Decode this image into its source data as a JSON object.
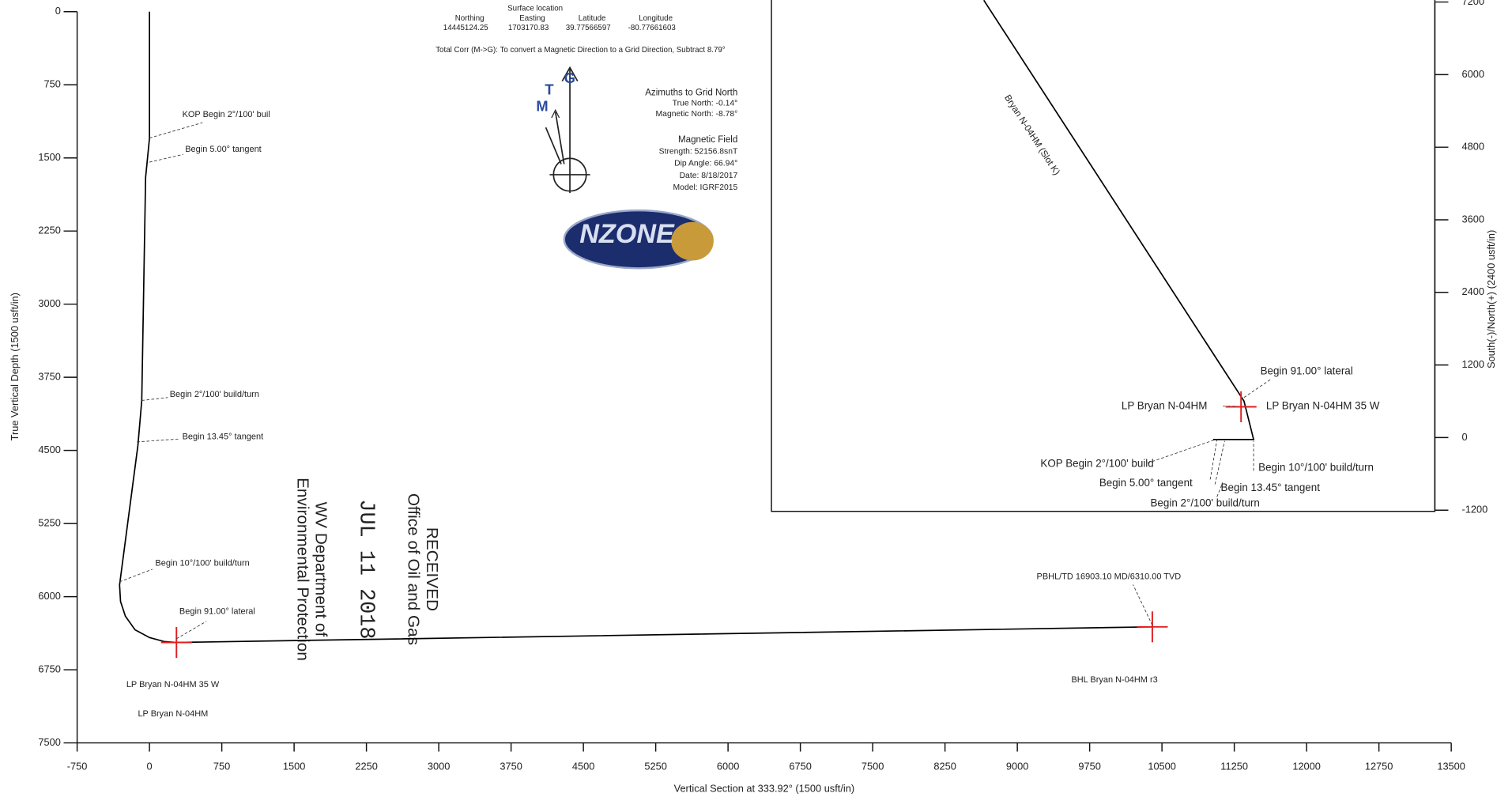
{
  "chart_data": [
    {
      "type": "line",
      "x_label": "Vertical Section at 333.92° (1500 usft/in)",
      "y_label": "True Vertical Depth (1500 usft/in)",
      "xlim": [
        -750,
        13500
      ],
      "ylim": [
        7500,
        0
      ],
      "xticks": [
        -750,
        0,
        750,
        1500,
        2250,
        3000,
        3750,
        4500,
        5250,
        6000,
        6750,
        7500,
        8250,
        9000,
        9750,
        10500,
        11250,
        12000,
        12750,
        13500
      ],
      "yticks": [
        0,
        750,
        1500,
        2250,
        3000,
        3750,
        4500,
        5250,
        6000,
        6750,
        7500
      ],
      "y_axis_side": "left",
      "series": [
        {
          "color": "#000000",
          "x": [
            0,
            0,
            -40,
            -80,
            -120,
            -310,
            -300,
            -250,
            -150,
            0,
            150,
            280,
            10400
          ],
          "values": [
            0,
            1300,
            1700,
            3990,
            4450,
            5880,
            6050,
            6200,
            6340,
            6420,
            6460,
            6470,
            6310
          ]
        }
      ],
      "target_color": "#e02020",
      "targets": [
        {
          "x": 280,
          "y": 6470
        },
        {
          "x": 10400,
          "y": 6310
        }
      ],
      "annotations": [
        "KOP Begin 2°/100' buil",
        "Begin 5.00° tangent",
        "Begin 2°/100' build/turn",
        "Begin 13.45° tangent",
        "Begin 10°/100' build/turn",
        "Begin 91.00° lateral",
        "LP Bryan N-04HM 35 W",
        "LP Bryan N-04HM",
        "PBHL/TD 16903.10 MD/6310.00 TVD",
        "BHL Bryan N-04HM r3"
      ]
    },
    {
      "type": "line",
      "y_label": "South(-)/North(+) (2400 usft/in)",
      "xlim": [
        -7470,
        3464
      ],
      "ylim": [
        -1220,
        7200
      ],
      "yticks": [
        -1200,
        0,
        1200,
        2400,
        3600,
        4800,
        6000,
        7200
      ],
      "y_axis_side": "right",
      "series": [
        {
          "name": "Bryan N-04HM (Slot K)",
          "color": "#000000",
          "x": [
            -3970,
            318,
            477,
            -191
          ],
          "values": [
            7230,
            604,
            -32,
            -32
          ]
        }
      ],
      "target_color": "#e02020",
      "targets": [
        {
          "x": 270,
          "y": 509
        }
      ],
      "annotations": [
        "Begin 91.00° lateral",
        "LP Bryan N-04HM",
        "LP Bryan N-04HM 35 W",
        "KOP Begin 2°/100' build",
        "Begin 5.00° tangent",
        "Begin 13.45° tangent",
        "Begin 10°/100' build/turn",
        "Begin 2°/100' build/turn"
      ]
    }
  ],
  "header": {
    "surface_location": "Surface location",
    "columns": [
      "Northing",
      "Easting",
      "Latitude",
      "Longitude"
    ],
    "values": [
      "14445124.25",
      "1703170.83",
      "39.77566597",
      "-80.77661603"
    ],
    "total_corr": "Total Corr (M->G):  To convert a Magnetic Direction to a Grid Direction, Subtract 8.79°"
  },
  "azimuths": {
    "title": "Azimuths to Grid North",
    "lines": [
      "True North: -0.14°",
      "Magnetic North: -8.78°"
    ]
  },
  "magnetic_field": {
    "title": "Magnetic Field",
    "lines": [
      "Strength: 52156.8snT",
      "Dip Angle: 66.94°",
      "Date: 8/18/2017",
      "Model: IGRF2015"
    ]
  },
  "north_arrow": [
    "M",
    "T",
    "G"
  ],
  "logo": "NZONE",
  "stamp": [
    "RECEIVED",
    "Office of Oil and Gas",
    "JUL 11 2018",
    "WV Department of",
    "Environmental Protection"
  ]
}
